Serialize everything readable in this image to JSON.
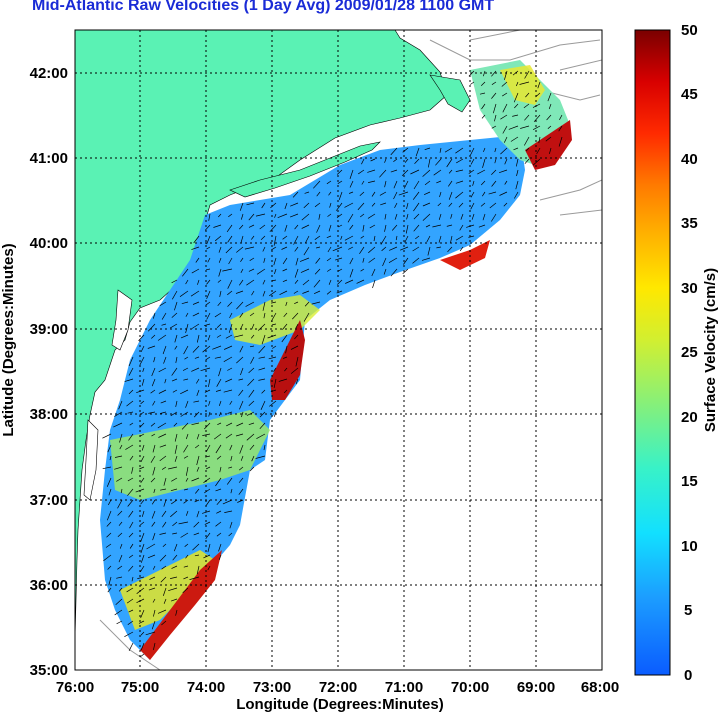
{
  "title": "Mid-Atlantic Raw Velocities (1 Day Avg) 2009/01/28 1100 GMT",
  "map": {
    "xlabel": "Longitude (Degrees:Minutes)",
    "ylabel": "Latitude (Degrees:Minutes)",
    "x_ticks": [
      "76:00",
      "75:00",
      "74:00",
      "73:00",
      "72:00",
      "71:00",
      "70:00",
      "69:00",
      "68:00"
    ],
    "y_ticks": [
      "42:00",
      "41:00",
      "40:00",
      "39:00",
      "38:00",
      "37:00",
      "36:00",
      "35:00"
    ],
    "land_color": "#5af2b4",
    "grid": true
  },
  "colorbar": {
    "label": "Surface Velocity (cm/s)",
    "ticks": [
      "50",
      "45",
      "40",
      "35",
      "30",
      "25",
      "20",
      "15",
      "10",
      "5",
      "0"
    ],
    "range": [
      0,
      50
    ]
  },
  "chart_data": {
    "type": "heatmap",
    "title": "Mid-Atlantic Raw Velocities (1 Day Avg) 2009/01/28 1100 GMT",
    "xlabel": "Longitude (Degrees:Minutes)",
    "ylabel": "Latitude (Degrees:Minutes)",
    "xlim": [
      -76,
      -68
    ],
    "ylim": [
      35,
      42.5
    ],
    "value_label": "Surface Velocity (cm/s)",
    "value_range": [
      0,
      50
    ]
  }
}
